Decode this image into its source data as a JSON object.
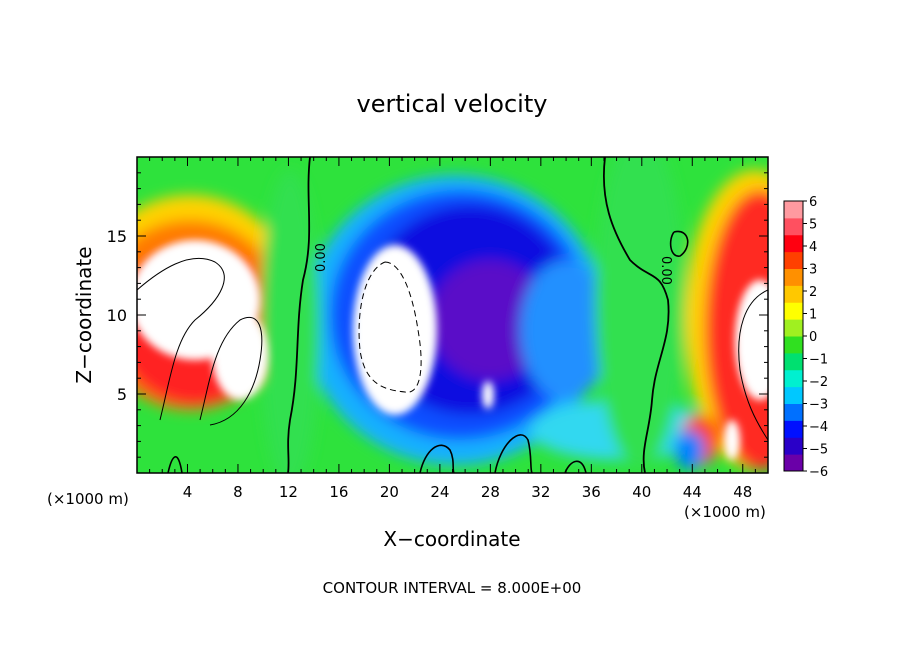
{
  "chart_data": {
    "type": "heatmap",
    "title": "vertical velocity",
    "xlabel": "X−coordinate",
    "ylabel": "Z−coordinate",
    "x_unit_left": "(×1000 m)",
    "x_unit_right": "(×1000 m)",
    "xlim": [
      0,
      50
    ],
    "ylim": [
      0,
      20
    ],
    "x_ticks": [
      "4",
      "8",
      "12",
      "16",
      "20",
      "24",
      "28",
      "32",
      "36",
      "40",
      "44",
      "48"
    ],
    "y_ticks": [
      "5",
      "10",
      "15"
    ],
    "colorbar": {
      "labels": [
        "6",
        "5",
        "4",
        "3",
        "2",
        "1",
        "0",
        "−1",
        "−2",
        "−3",
        "−4",
        "−5",
        "−6"
      ],
      "range": [
        -6,
        6
      ],
      "colors": [
        "#6a00a8",
        "#2a00c8",
        "#0010ff",
        "#0070ff",
        "#00c8ff",
        "#00f0d0",
        "#00e070",
        "#30e020",
        "#a0f020",
        "#ffff00",
        "#ffc800",
        "#ff9000",
        "#ff4000",
        "#ff0010",
        "#ff5060",
        "#ff9aa0"
      ],
      "above_range_color": "#ffffff"
    },
    "contour_labels": [
      "0.00",
      "0.00"
    ],
    "footer": "CONTOUR INTERVAL = 8.000E+00"
  }
}
